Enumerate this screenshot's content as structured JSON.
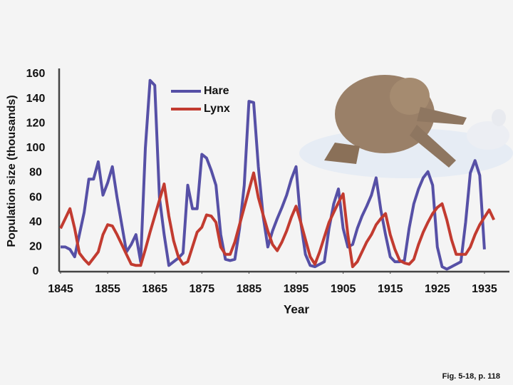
{
  "chart_data": {
    "type": "line",
    "x_label": "Year",
    "y_label": "Population size (thousands)",
    "footnote": "Fig. 5-18, p. 118",
    "x": [
      1845,
      1846,
      1847,
      1848,
      1849,
      1850,
      1851,
      1852,
      1853,
      1854,
      1855,
      1856,
      1857,
      1858,
      1859,
      1860,
      1861,
      1862,
      1863,
      1864,
      1865,
      1866,
      1867,
      1868,
      1869,
      1870,
      1871,
      1872,
      1873,
      1874,
      1875,
      1876,
      1877,
      1878,
      1879,
      1880,
      1881,
      1882,
      1883,
      1884,
      1885,
      1886,
      1887,
      1888,
      1889,
      1890,
      1891,
      1892,
      1893,
      1894,
      1895,
      1896,
      1897,
      1898,
      1899,
      1900,
      1901,
      1902,
      1903,
      1904,
      1905,
      1906,
      1907,
      1908,
      1909,
      1910,
      1911,
      1912,
      1913,
      1914,
      1915,
      1916,
      1917,
      1918,
      1919,
      1920,
      1921,
      1922,
      1923,
      1924,
      1925,
      1926,
      1927,
      1928,
      1929,
      1930,
      1931,
      1932,
      1933,
      1934,
      1935,
      1936,
      1937
    ],
    "series": [
      {
        "name": "Hare",
        "color": "#5650a6",
        "values": [
          20,
          20,
          18,
          12,
          30,
          48,
          75,
          75,
          89,
          62,
          72,
          85,
          60,
          38,
          16,
          22,
          30,
          8,
          100,
          155,
          151,
          60,
          30,
          5,
          8,
          11,
          15,
          70,
          51,
          51,
          95,
          92,
          82,
          70,
          30,
          10,
          9,
          10,
          35,
          70,
          138,
          137,
          85,
          45,
          20,
          33,
          43,
          52,
          62,
          75,
          85,
          40,
          14,
          5,
          4,
          6,
          8,
          35,
          55,
          67,
          35,
          20,
          22,
          35,
          45,
          53,
          62,
          76,
          50,
          30,
          12,
          8,
          8,
          9,
          35,
          55,
          67,
          76,
          81,
          70,
          20,
          4,
          2,
          4,
          6,
          8,
          40,
          80,
          90,
          78,
          18,
          null,
          null
        ]
      },
      {
        "name": "Lynx",
        "color": "#c23b30",
        "values": [
          35,
          43,
          51,
          35,
          15,
          10,
          6,
          11,
          16,
          30,
          38,
          37,
          30,
          22,
          14,
          6,
          5,
          5,
          18,
          32,
          45,
          58,
          71,
          45,
          25,
          12,
          6,
          8,
          20,
          32,
          36,
          46,
          45,
          40,
          20,
          14,
          14,
          24,
          38,
          52,
          66,
          80,
          60,
          46,
          33,
          22,
          17,
          24,
          33,
          44,
          53,
          40,
          26,
          12,
          6,
          16,
          28,
          40,
          48,
          56,
          63,
          30,
          4,
          8,
          16,
          24,
          30,
          38,
          43,
          47,
          30,
          18,
          9,
          7,
          6,
          10,
          22,
          32,
          40,
          47,
          52,
          55,
          42,
          26,
          14,
          14,
          14,
          20,
          30,
          38,
          44,
          50,
          42
        ]
      }
    ],
    "xlim": [
      1845,
      1940
    ],
    "ylim": [
      0,
      160
    ],
    "xticks": [
      1845,
      1855,
      1865,
      1875,
      1885,
      1895,
      1905,
      1915,
      1925,
      1935
    ],
    "yticks": [
      0,
      20,
      40,
      60,
      80,
      100,
      120,
      140,
      160
    ]
  }
}
